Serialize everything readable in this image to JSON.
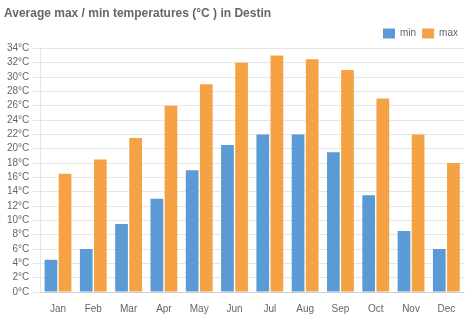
{
  "chart_data": {
    "type": "bar",
    "title": "Average max / min temperatures (°C ) in Destin",
    "categories": [
      "Jan",
      "Feb",
      "Mar",
      "Apr",
      "May",
      "Jun",
      "Jul",
      "Aug",
      "Sep",
      "Oct",
      "Nov",
      "Dec"
    ],
    "series": [
      {
        "name": "min",
        "color": "#5b9bd5",
        "values": [
          4.5,
          6,
          9.5,
          13,
          17,
          20.5,
          22,
          22,
          19.5,
          13.5,
          8.5,
          6
        ]
      },
      {
        "name": "max",
        "color": "#f4a243",
        "values": [
          16.5,
          18.5,
          21.5,
          26,
          29,
          32,
          33,
          32.5,
          31,
          27,
          22,
          18
        ]
      }
    ],
    "ylim": [
      0,
      34
    ],
    "yticks": [
      {
        "value": 0,
        "label": "0°C"
      },
      {
        "value": 2,
        "label": "2°C"
      },
      {
        "value": 4,
        "label": "4°C"
      },
      {
        "value": 6,
        "label": "6°C"
      },
      {
        "value": 8,
        "label": "8°C"
      },
      {
        "value": 10,
        "label": "10°C"
      },
      {
        "value": 12,
        "label": "12°C"
      },
      {
        "value": 14,
        "label": "14°C"
      },
      {
        "value": 16,
        "label": "16°C"
      },
      {
        "value": 18,
        "label": "18°C"
      },
      {
        "value": 20,
        "label": "20°C"
      },
      {
        "value": 22,
        "label": "22°C"
      },
      {
        "value": 24,
        "label": "24°C"
      },
      {
        "value": 26,
        "label": "26°C"
      },
      {
        "value": 28,
        "label": "28°C"
      },
      {
        "value": 30,
        "label": "30°C"
      },
      {
        "value": 32,
        "label": "32°C"
      },
      {
        "value": 34,
        "label": "34°C"
      }
    ],
    "grid": true,
    "legend": "upper right"
  }
}
